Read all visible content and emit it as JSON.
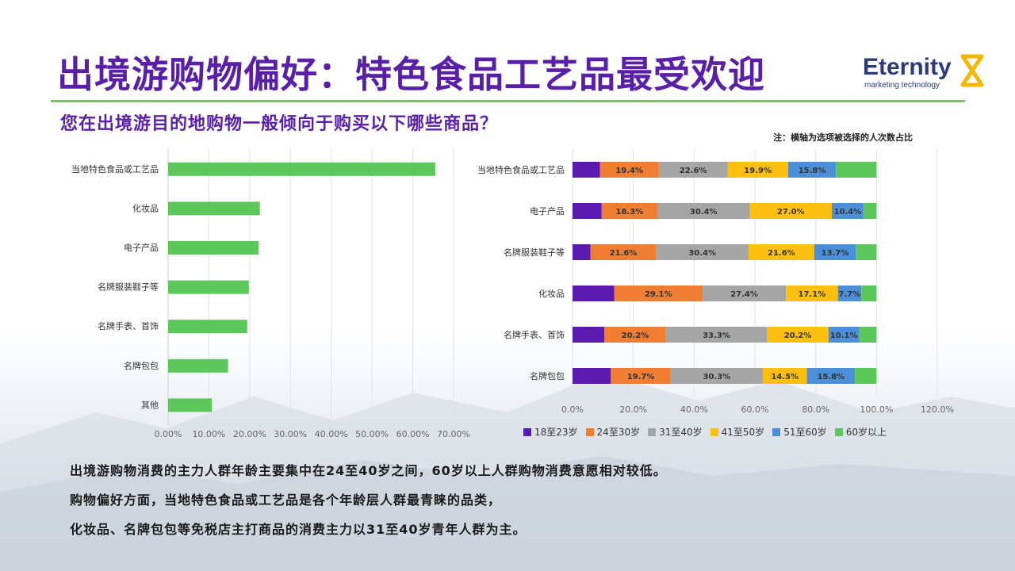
{
  "header": {
    "title": "出境游购物偏好：特色食品工艺品最受欢迎",
    "logo_text": "Eternity",
    "logo_subtext": "marketing technology"
  },
  "question": "您在出境游目的地购物一般倾向于购买以下哪些商品？",
  "note": "注：横轴为选项被选择的人次数占比",
  "colors": {
    "title": "#5a1fa8",
    "divider": "#7cc36c",
    "bar_green": "#5cc85c"
  },
  "chart_data": [
    {
      "type": "bar",
      "orientation": "horizontal",
      "categories": [
        "当地特色食品或工艺品",
        "化妆品",
        "电子产品",
        "名牌服装鞋子等",
        "名牌手表、首饰",
        "名牌包包",
        "其他"
      ],
      "values": [
        65.5,
        22.5,
        22.2,
        19.8,
        19.4,
        14.7,
        10.7
      ],
      "xlim": [
        0,
        70
      ],
      "xticks": [
        "0.00%",
        "10.00%",
        "20.00%",
        "30.00%",
        "40.00%",
        "50.00%",
        "60.00%",
        "70.00%"
      ],
      "grid": true,
      "color": "#5cc85c"
    },
    {
      "type": "bar",
      "orientation": "horizontal",
      "stacked": true,
      "categories": [
        "当地特色食品或工艺品",
        "电子产品",
        "名牌服装鞋子等",
        "化妆品",
        "名牌手表、首饰",
        "名牌包包"
      ],
      "xlim": [
        0,
        120
      ],
      "xticks": [
        "0.0%",
        "20.0%",
        "40.0%",
        "60.0%",
        "80.0%",
        "100.0%",
        "120.0%"
      ],
      "grid": true,
      "legend_position": "bottom",
      "series": [
        {
          "name": "18至23岁",
          "color": "#5b1ab0",
          "values": [
            9.0,
            9.6,
            5.9,
            13.7,
            10.5,
            12.6
          ],
          "labels": [
            "",
            "",
            "",
            "",
            "",
            ""
          ]
        },
        {
          "name": "24至30岁",
          "color": "#ef7d32",
          "values": [
            19.4,
            18.3,
            21.6,
            29.1,
            20.2,
            19.7
          ],
          "labels": [
            "19.4%",
            "18.3%",
            "21.6%",
            "29.1%",
            "20.2%",
            "19.7%"
          ]
        },
        {
          "name": "31至40岁",
          "color": "#a5a5a5",
          "values": [
            22.6,
            30.4,
            30.4,
            27.4,
            33.3,
            30.3
          ],
          "labels": [
            "22.6%",
            "30.4%",
            "30.4%",
            "27.4%",
            "33.3%",
            "30.3%"
          ]
        },
        {
          "name": "41至50岁",
          "color": "#fdc010",
          "values": [
            19.9,
            27.0,
            21.6,
            17.1,
            20.2,
            14.5
          ],
          "labels": [
            "19.9%",
            "27.0%",
            "21.6%",
            "17.1%",
            "20.2%",
            "14.5%"
          ]
        },
        {
          "name": "51至60岁",
          "color": "#4a8fd8",
          "values": [
            15.8,
            10.4,
            13.7,
            7.7,
            10.1,
            15.8
          ],
          "labels": [
            "15.8%",
            "10.4%",
            "13.7%",
            "7.7%",
            "10.1%",
            "15.8%"
          ]
        },
        {
          "name": "60岁以上",
          "color": "#5cc85c",
          "values": [
            13.3,
            4.3,
            6.8,
            5.0,
            5.7,
            7.1
          ],
          "labels": [
            "",
            "",
            "",
            "",
            "",
            ""
          ]
        }
      ]
    }
  ],
  "findings": [
    "出境游购物消费的主力人群年龄主要集中在24至40岁之间，60岁以上人群购物消费意愿相对较低。",
    "购物偏好方面，当地特色食品或工艺品是各个年龄层人群最青睐的品类，",
    "化妆品、名牌包包等免税店主打商品的消费主力以31至40岁青年人群为主。"
  ]
}
